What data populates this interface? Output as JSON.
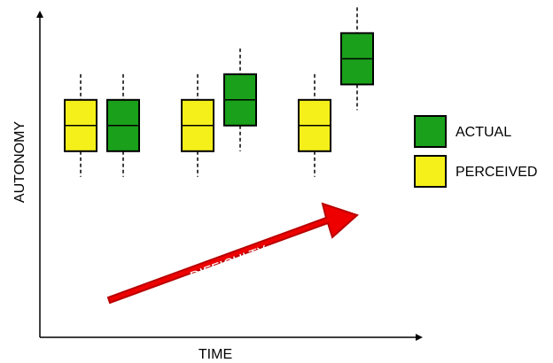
{
  "chart_data": {
    "type": "boxplot",
    "xlabel": "TIME",
    "ylabel": "AUTONOMY",
    "annotation": "DIFFICULTY",
    "colors": {
      "ACTUAL": "#1aa01a",
      "PERCEIVED": "#f5f01a",
      "arrow": "#ee0000",
      "arrow_dark": "#b80000"
    },
    "legend": {
      "placement": "right",
      "entries": [
        {
          "key": "ACTUAL",
          "label": "ACTUAL"
        },
        {
          "key": "PERCEIVED",
          "label": "PERCEIVED"
        }
      ]
    },
    "y_range": [
      0,
      100
    ],
    "groups": [
      {
        "boxes": [
          {
            "series": "PERCEIVED",
            "whisker_low": 38,
            "q1": 48,
            "median": 58,
            "q3": 68,
            "whisker_high": 78
          },
          {
            "series": "ACTUAL",
            "whisker_low": 38,
            "q1": 48,
            "median": 58,
            "q3": 68,
            "whisker_high": 78
          }
        ]
      },
      {
        "boxes": [
          {
            "series": "PERCEIVED",
            "whisker_low": 38,
            "q1": 48,
            "median": 58,
            "q3": 68,
            "whisker_high": 78
          },
          {
            "series": "ACTUAL",
            "whisker_low": 48,
            "q1": 58,
            "median": 68,
            "q3": 78,
            "whisker_high": 88
          }
        ]
      },
      {
        "boxes": [
          {
            "series": "PERCEIVED",
            "whisker_low": 38,
            "q1": 48,
            "median": 58,
            "q3": 68,
            "whisker_high": 78
          },
          {
            "series": "ACTUAL",
            "whisker_low": 64,
            "q1": 74,
            "median": 84,
            "q3": 94,
            "whisker_high": 104
          }
        ]
      }
    ]
  }
}
